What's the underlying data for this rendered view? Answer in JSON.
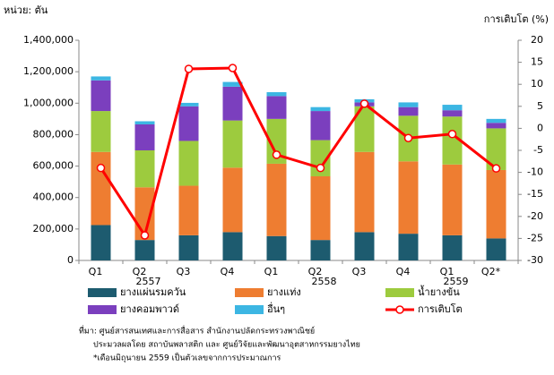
{
  "chart_data": {
    "type": "stacked_bar_line",
    "y_label": "หน่วย: ตัน",
    "y2_label": "การเติบโต (%)",
    "categories": [
      "Q1",
      "Q2",
      "Q3",
      "Q4",
      "Q1",
      "Q2",
      "Q3",
      "Q4",
      "Q1",
      "Q2*"
    ],
    "year_labels": [
      "2557",
      "2558",
      "2559"
    ],
    "series": [
      {
        "name": "ยางแผ่นรมควัน",
        "color": "#1d5b6f",
        "values": [
          225000,
          130000,
          160000,
          180000,
          155000,
          130000,
          180000,
          170000,
          160000,
          140000
        ]
      },
      {
        "name": "ยางแท่ง",
        "color": "#ee7d31",
        "values": [
          465000,
          335000,
          315000,
          410000,
          460000,
          405000,
          510000,
          460000,
          450000,
          435000
        ]
      },
      {
        "name": "น้ำยางข้น",
        "color": "#9dcb3e",
        "values": [
          260000,
          235000,
          285000,
          300000,
          285000,
          230000,
          290000,
          290000,
          305000,
          265000
        ]
      },
      {
        "name": "ยางคอมพาวด์",
        "color": "#7b3fbe",
        "values": [
          195000,
          165000,
          220000,
          215000,
          145000,
          185000,
          25000,
          55000,
          40000,
          35000
        ]
      },
      {
        "name": "อื่นๆ",
        "color": "#3cb6e3",
        "values": [
          25000,
          20000,
          22000,
          30000,
          25000,
          25000,
          20000,
          30000,
          35000,
          25000
        ]
      },
      {
        "name": "การเติบโต",
        "color": "#ff0000",
        "axis": "y2",
        "values": [
          -9,
          -24.3,
          13.5,
          13.7,
          -6,
          -9,
          5.6,
          -2.2,
          -1.3,
          -9.1
        ]
      }
    ],
    "ylim": [
      0,
      1400000
    ],
    "yticks": [
      0,
      {
        "value": 200000,
        "label": "200,000"
      },
      {
        "value": 400000,
        "label": "400,000"
      },
      {
        "value": 600000,
        "label": "600,000"
      },
      {
        "value": 800000,
        "label": "800,000"
      },
      {
        "value": 1000000,
        "label": "1,000,000"
      },
      {
        "value": 1200000,
        "label": "1,200,000"
      },
      {
        "value": 1400000,
        "label": "1,400,000"
      }
    ],
    "y2lim": [
      -30,
      20
    ],
    "y2ticks": [
      -30,
      -25,
      -20,
      -15,
      -10,
      -5,
      0,
      5,
      10,
      15,
      20
    ],
    "grid": false,
    "notes": [
      "ที่มา: ศูนย์สารสนเทศและการสื่อสาร สำนักงานปลัดกระทรวงพาณิชย์",
      "ประมวลผลโดย สถาบันพลาสติก และ ศูนย์วิจัยและพัฒนาอุตสาหกรรมยางไทย",
      "*เดือนมิถุนายน 2559 เป็นตัวเลขจากการประมาณการ"
    ]
  }
}
